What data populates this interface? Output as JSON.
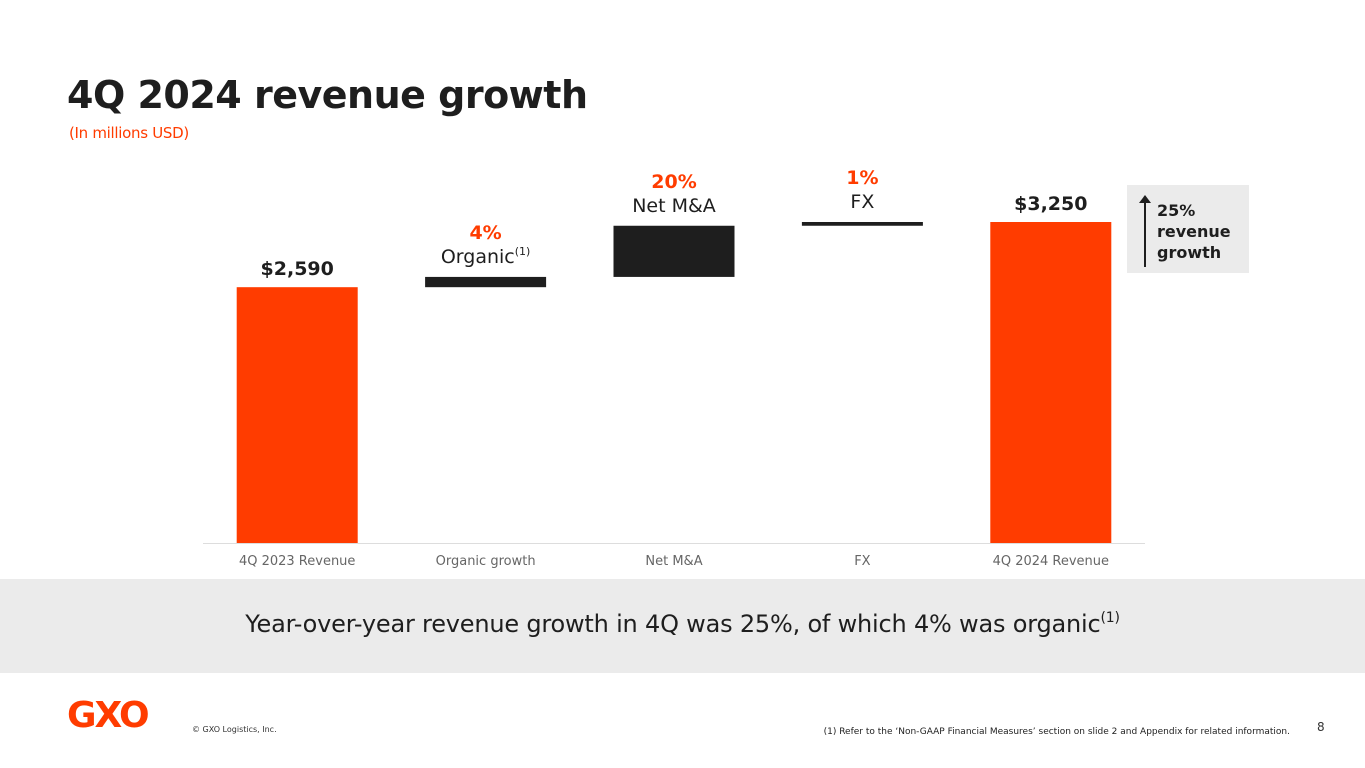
{
  "header": {
    "title": "4Q 2024 revenue growth",
    "subtitle": "(In millions USD)"
  },
  "chart_data": {
    "type": "bar",
    "subtype": "waterfall",
    "categories": [
      "4Q 2023 Revenue",
      "Organic growth",
      "Net M&A",
      "FX",
      "4Q 2024 Revenue"
    ],
    "values": [
      2590,
      104,
      518,
      38,
      3250
    ],
    "bar_kinds": [
      "total",
      "delta",
      "delta",
      "delta",
      "total"
    ],
    "top_labels": [
      {
        "value_text": "$2,590",
        "pct_text": "",
        "name_text": "",
        "superscript": ""
      },
      {
        "value_text": "",
        "pct_text": "4%",
        "name_text": "Organic",
        "superscript": "(1)"
      },
      {
        "value_text": "",
        "pct_text": "20%",
        "name_text": "Net M&A",
        "superscript": ""
      },
      {
        "value_text": "",
        "pct_text": "1%",
        "name_text": "FX",
        "superscript": ""
      },
      {
        "value_text": "$3,250",
        "pct_text": "",
        "name_text": "",
        "superscript": ""
      }
    ],
    "ylim": [
      0,
      3250
    ],
    "xlabel": "",
    "ylabel": "",
    "colors": {
      "total": "#ff3c00",
      "delta": "#1e1e1e",
      "pct": "#ff3c00",
      "axis": "#dddddd",
      "tick": "#666666"
    }
  },
  "callout": {
    "text": "25% revenue growth"
  },
  "banner": {
    "text": "Year-over-year revenue growth in 4Q was 25%, of which 4% was organic",
    "superscript": "(1)"
  },
  "footer": {
    "logo": "GXO",
    "copyright": "© GXO Logistics, Inc.",
    "footnote": "(1) Refer to the ‘Non-GAAP Financial Measures’ section on slide 2 and Appendix for related information.",
    "page_number": "8"
  }
}
